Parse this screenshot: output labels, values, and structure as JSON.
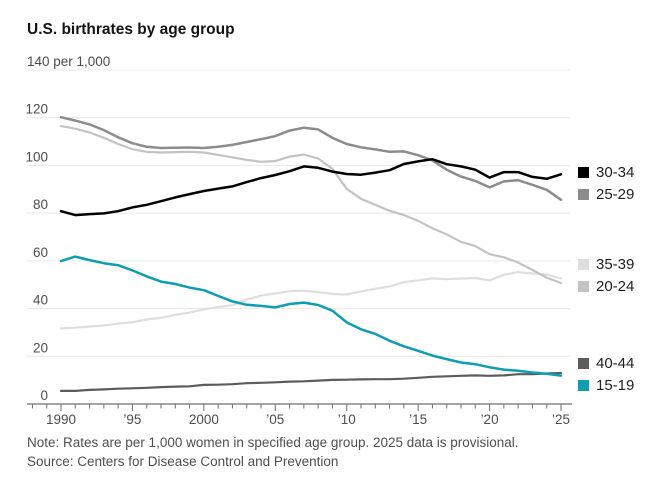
{
  "header": {
    "title": "U.S. birthrates by age group"
  },
  "footer": {
    "note": "Note: Rates are per 1,000 women in specified age group. 2025 data is provisional.",
    "source": "Source: Centers for Disease Control and Prevention"
  },
  "colors": {
    "background": "#ffffff",
    "gridline": "#e9e9e9",
    "axis": "#6f6f6f",
    "axis_text": "#4d4d4d",
    "title_text": "#141414",
    "legend_text": "#1f1f1f",
    "teal_accent": "#0d9eb1"
  },
  "chart_data": {
    "type": "line",
    "title": "U.S. birthrates by age group",
    "y_top_label": "140 per 1,000",
    "ylim": [
      0,
      140
    ],
    "y_ticks": [
      0,
      20,
      40,
      60,
      80,
      100,
      120,
      140
    ],
    "y_tick_labels": [
      "0",
      "20",
      "40",
      "60",
      "80",
      "100",
      "120"
    ],
    "x_range": [
      1990,
      2025
    ],
    "x_tick_years": [
      1990,
      1995,
      2000,
      2005,
      2010,
      2015,
      2020,
      2025
    ],
    "x_tick_labels": [
      "1990",
      "’95",
      "2000",
      "’05",
      "’10",
      "’15",
      "’20",
      "’25"
    ],
    "grid": true,
    "legend_position": "right",
    "years": [
      1990,
      1991,
      1992,
      1993,
      1994,
      1995,
      1996,
      1997,
      1998,
      1999,
      2000,
      2001,
      2002,
      2003,
      2004,
      2005,
      2006,
      2007,
      2008,
      2009,
      2010,
      2011,
      2012,
      2013,
      2014,
      2015,
      2016,
      2017,
      2018,
      2019,
      2020,
      2021,
      2022,
      2023,
      2024,
      2025
    ],
    "series": [
      {
        "name": "30-34",
        "color": "#000000",
        "width": 2.5,
        "values": [
          80.8,
          79.2,
          79.6,
          79.9,
          80.8,
          82.4,
          83.5,
          85.0,
          86.6,
          88.0,
          89.3,
          90.3,
          91.2,
          93.0,
          94.7,
          96.0,
          97.6,
          99.6,
          99.0,
          97.4,
          96.4,
          96.1,
          97.0,
          98.0,
          100.6,
          101.7,
          102.6,
          100.5,
          99.6,
          98.2,
          94.9,
          97.2,
          97.2,
          95.2,
          94.4,
          96.3
        ]
      },
      {
        "name": "25-29",
        "color": "#8c8c8c",
        "width": 2.5,
        "values": [
          120.2,
          118.8,
          117.2,
          114.8,
          111.8,
          109.3,
          107.8,
          107.3,
          107.4,
          107.5,
          107.3,
          107.8,
          108.6,
          109.8,
          111.0,
          112.3,
          114.6,
          115.8,
          115.1,
          111.6,
          109.0,
          107.6,
          106.7,
          105.7,
          105.9,
          104.3,
          102.1,
          98.2,
          95.3,
          93.5,
          90.8,
          93.3,
          93.8,
          91.9,
          89.8,
          85.6
        ]
      },
      {
        "name": "35-39",
        "color": "#dedede",
        "width": 2.2,
        "values": [
          31.7,
          32.0,
          32.5,
          32.9,
          33.7,
          34.3,
          35.4,
          36.1,
          37.4,
          38.3,
          39.7,
          40.6,
          41.4,
          43.8,
          45.4,
          46.3,
          47.3,
          47.5,
          46.9,
          46.1,
          45.9,
          47.2,
          48.3,
          49.3,
          51.0,
          51.8,
          52.7,
          52.3,
          52.6,
          52.8,
          51.8,
          54.2,
          55.3,
          54.7,
          54.3,
          52.6
        ]
      },
      {
        "name": "20-24",
        "color": "#c3c3c3",
        "width": 2.2,
        "values": [
          116.5,
          115.4,
          113.8,
          111.6,
          109.0,
          106.8,
          105.7,
          105.4,
          105.6,
          105.7,
          105.4,
          104.4,
          103.4,
          102.3,
          101.5,
          101.8,
          103.7,
          104.6,
          102.9,
          98.6,
          90.2,
          86.0,
          83.5,
          81.0,
          79.2,
          76.8,
          73.7,
          71.1,
          68.0,
          66.2,
          62.8,
          61.5,
          59.3,
          56.2,
          53.0,
          50.7
        ]
      },
      {
        "name": "40-44",
        "color": "#5c5c5c",
        "width": 2.2,
        "values": [
          5.5,
          5.5,
          5.9,
          6.1,
          6.4,
          6.6,
          6.8,
          7.1,
          7.3,
          7.4,
          8.0,
          8.1,
          8.3,
          8.7,
          8.9,
          9.1,
          9.4,
          9.5,
          9.8,
          10.1,
          10.2,
          10.3,
          10.4,
          10.4,
          10.6,
          11.0,
          11.4,
          11.6,
          11.8,
          12.0,
          11.8,
          12.0,
          12.5,
          12.5,
          12.8,
          13.0
        ]
      },
      {
        "name": "15-19",
        "color": "#0d9eb1",
        "width": 2.5,
        "values": [
          59.9,
          61.8,
          60.3,
          59.0,
          58.2,
          56.0,
          53.5,
          51.3,
          50.3,
          48.8,
          47.7,
          45.3,
          43.0,
          41.6,
          41.1,
          40.5,
          41.9,
          42.5,
          41.5,
          39.1,
          34.2,
          31.3,
          29.4,
          26.5,
          24.2,
          22.3,
          20.3,
          18.8,
          17.4,
          16.7,
          15.4,
          14.4,
          13.9,
          13.2,
          12.7,
          11.9
        ]
      }
    ],
    "note": "Note: Rates are per 1,000 women in specified age group. 2025 data is provisional.",
    "source": "Source: Centers for Disease Control and Prevention"
  }
}
